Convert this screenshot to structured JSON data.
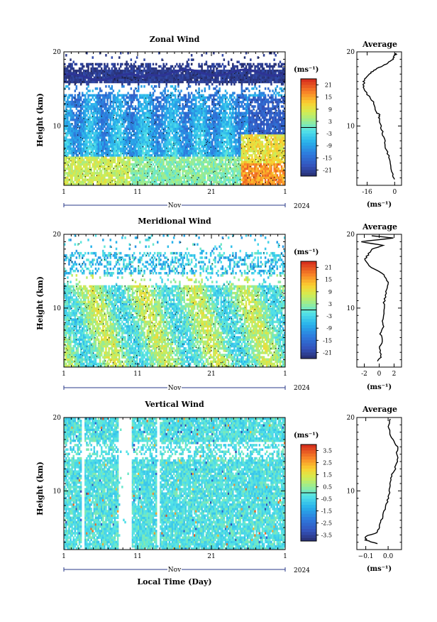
{
  "chart_data": [
    {
      "type": "heatmap",
      "title": "Zonal Wind",
      "ylabel": "Height (km)",
      "ylim": [
        2,
        20
      ],
      "yticks": [
        20,
        10
      ],
      "x_range": [
        1,
        31
      ],
      "x_ticks": [
        "1",
        "11",
        "21",
        "1"
      ],
      "month_label": "Nov",
      "year_label": "2024",
      "colorbar": {
        "unit": "(ms⁻¹)",
        "labels": [
          "21",
          "15",
          "9",
          "3",
          "-3",
          "-9",
          "-15",
          "-21"
        ],
        "range": [
          -24,
          24
        ]
      },
      "average": {
        "title": "Average",
        "xlabel": "(ms⁻¹)",
        "xticks": [
          "-16",
          "0"
        ],
        "xlim": [
          -22,
          4
        ],
        "profile": [
          [
            2.8,
            0
          ],
          [
            3.5,
            -1
          ],
          [
            5,
            -2.5
          ],
          [
            6,
            -3.5
          ],
          [
            7,
            -5
          ],
          [
            8,
            -6
          ],
          [
            9,
            -7
          ],
          [
            10,
            -8
          ],
          [
            11,
            -9
          ],
          [
            11.5,
            -9
          ],
          [
            12,
            -11
          ],
          [
            13,
            -12
          ],
          [
            14,
            -15
          ],
          [
            15,
            -18
          ],
          [
            15.5,
            -18
          ],
          [
            16,
            -18
          ],
          [
            16.5,
            -17
          ],
          [
            17,
            -15
          ],
          [
            17.5,
            -12
          ],
          [
            18,
            -8
          ],
          [
            18.5,
            -4
          ],
          [
            19,
            -1
          ],
          [
            19.5,
            0
          ],
          [
            19.8,
            1
          ]
        ]
      }
    },
    {
      "type": "heatmap",
      "title": "Meridional Wind",
      "ylabel": "Height (km)",
      "ylim": [
        2,
        20
      ],
      "yticks": [
        20,
        10
      ],
      "x_range": [
        1,
        31
      ],
      "x_ticks": [
        "1",
        "11",
        "21",
        "1"
      ],
      "month_label": "Nov",
      "year_label": "2024",
      "colorbar": {
        "unit": "(ms⁻¹)",
        "labels": [
          "21",
          "15",
          "9",
          "3",
          "-3",
          "-9",
          "-15",
          "-21"
        ],
        "range": [
          -24,
          24
        ]
      },
      "average": {
        "title": "Average",
        "xlabel": "(ms⁻¹)",
        "xticks": [
          "-2",
          "0",
          "2"
        ],
        "xlim": [
          -3,
          3
        ],
        "profile": [
          [
            2.8,
            -0.2
          ],
          [
            3.5,
            0.3
          ],
          [
            4.5,
            0.0
          ],
          [
            5.5,
            0.4
          ],
          [
            6.5,
            0.2
          ],
          [
            7.5,
            0.6
          ],
          [
            8.5,
            0.5
          ],
          [
            9.5,
            0.7
          ],
          [
            10.5,
            0.6
          ],
          [
            11.5,
            0.8
          ],
          [
            12.5,
            1.0
          ],
          [
            13.5,
            1.2
          ],
          [
            14.5,
            0.6
          ],
          [
            15.5,
            -1.0
          ],
          [
            16.5,
            -2.0
          ],
          [
            17.2,
            -1.5
          ],
          [
            18,
            -1.0
          ],
          [
            18.5,
            0.5
          ],
          [
            19,
            -2.5
          ],
          [
            19.5,
            2.0
          ],
          [
            19.8,
            -1.0
          ]
        ]
      }
    },
    {
      "type": "heatmap",
      "title": "Vertical Wind",
      "xlabel": "Local Time (Day)",
      "ylabel": "Height (km)",
      "ylim": [
        2,
        20
      ],
      "yticks": [
        20,
        10
      ],
      "x_range": [
        1,
        31
      ],
      "x_ticks": [
        "1",
        "11",
        "21",
        "1"
      ],
      "month_label": "Nov",
      "year_label": "2024",
      "colorbar": {
        "unit": "(ms⁻¹)",
        "labels": [
          "3.5",
          "2.5",
          "1.5",
          "0.5",
          "-0.5",
          "-1.5",
          "-2.5",
          "-3.5"
        ],
        "range": [
          -4,
          4
        ]
      },
      "average": {
        "title": "Average",
        "xlabel": "(ms⁻¹)",
        "xticks": [
          "−0.1",
          "0.0"
        ],
        "xlim": [
          -0.14,
          0.06
        ],
        "profile": [
          [
            2.8,
            -0.05
          ],
          [
            3.3,
            -0.1
          ],
          [
            3.8,
            -0.1
          ],
          [
            4.3,
            -0.05
          ],
          [
            5,
            -0.04
          ],
          [
            6,
            -0.03
          ],
          [
            7,
            -0.02
          ],
          [
            8,
            -0.01
          ],
          [
            9,
            0.0
          ],
          [
            10,
            0.005
          ],
          [
            11,
            0.01
          ],
          [
            12,
            0.015
          ],
          [
            13,
            0.03
          ],
          [
            14,
            0.04
          ],
          [
            15,
            0.04
          ],
          [
            16,
            0.04
          ],
          [
            17,
            0.02
          ],
          [
            18,
            0.005
          ],
          [
            19,
            0.0
          ],
          [
            19.8,
            0.01
          ]
        ]
      }
    }
  ]
}
